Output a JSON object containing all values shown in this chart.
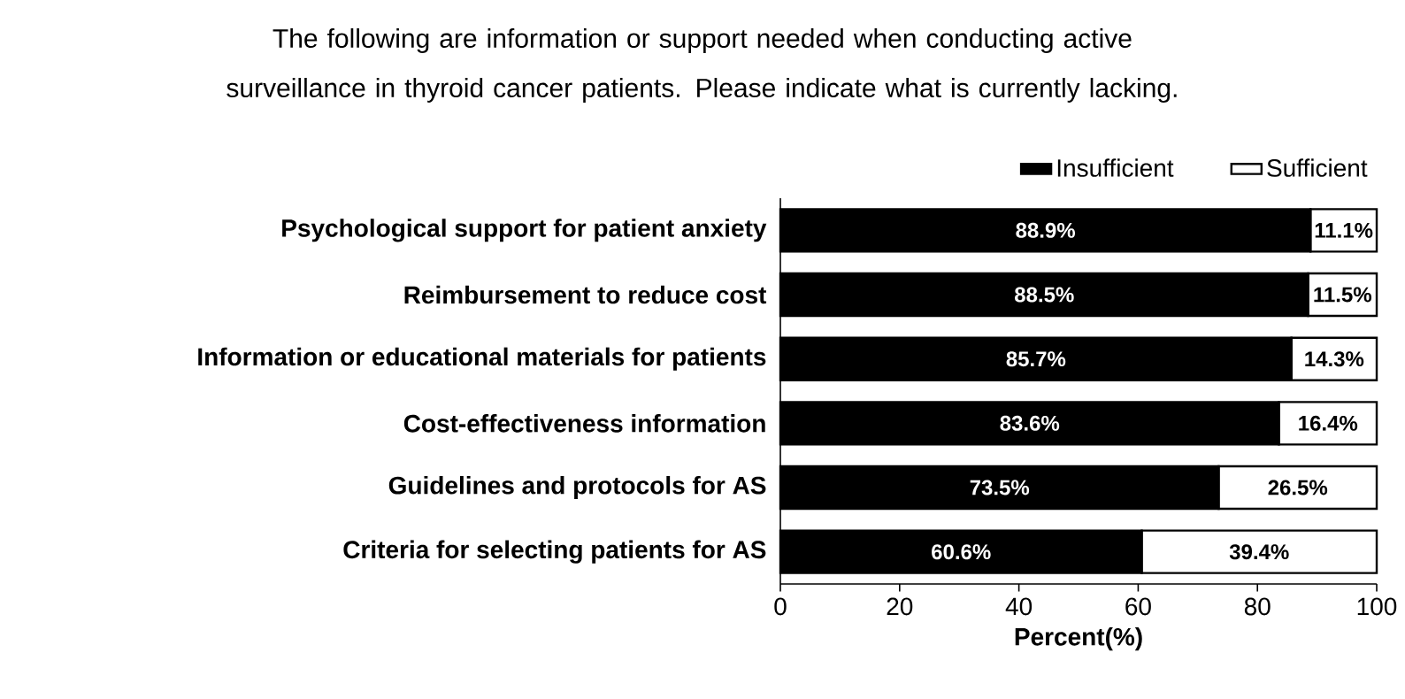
{
  "chart_data": {
    "type": "bar",
    "orientation": "horizontal",
    "stacked": true,
    "title": "The following are information or support needed when conducting active surveillance in thyroid cancer patients. Please indicate what is currently lacking.",
    "categories": [
      "Psychological support for patient anxiety",
      "Reimbursement to reduce cost",
      "Information or educational materials for patients",
      "Cost-effectiveness information",
      "Guidelines and protocols for AS",
      "Criteria for selecting patients for AS"
    ],
    "series": [
      {
        "name": "Insufficient",
        "color": "#000000",
        "values": [
          88.9,
          88.5,
          85.7,
          83.6,
          73.5,
          60.6
        ],
        "value_labels": [
          "88.9%",
          "88.5%",
          "85.7%",
          "83.6%",
          "73.5%",
          "60.6%"
        ]
      },
      {
        "name": "Sufficient",
        "color": "#ffffff",
        "values": [
          11.1,
          11.5,
          14.3,
          16.4,
          26.5,
          39.4
        ],
        "value_labels": [
          "11.1%",
          "11.5%",
          "14.3%",
          "16.4%",
          "26.5%",
          "39.4%"
        ]
      }
    ],
    "xlabel": "Percent(%)",
    "xlim": [
      0,
      100
    ],
    "xticks": [
      0,
      20,
      40,
      60,
      80,
      100
    ],
    "legend": "top right"
  }
}
